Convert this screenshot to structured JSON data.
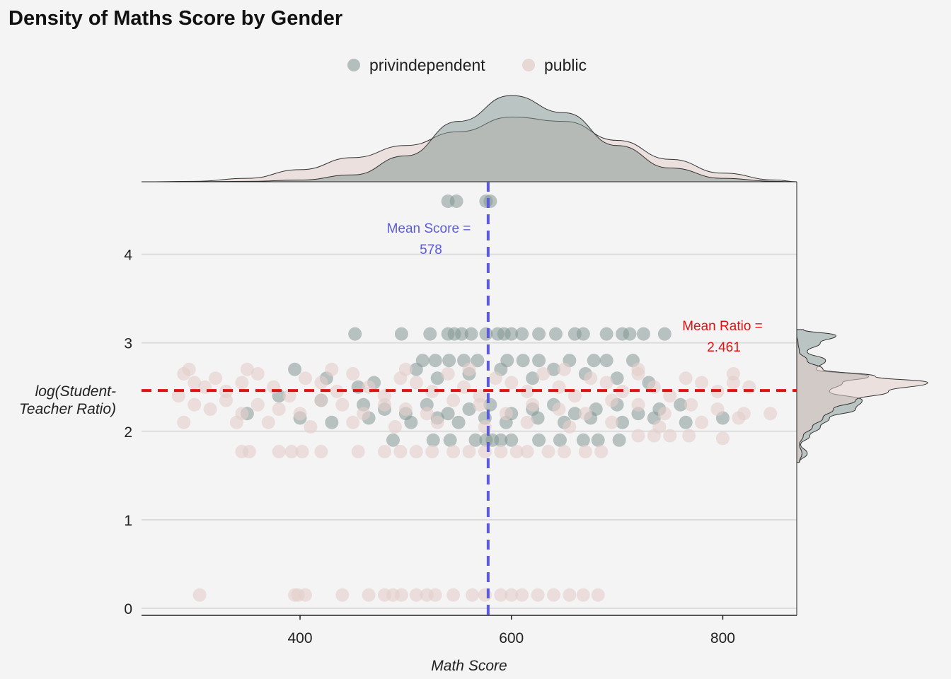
{
  "chart_data": {
    "type": "scatter",
    "title": "Density of Maths Score by Gender",
    "xlabel": "Math Score",
    "ylabel_line1": "log(Student-",
    "ylabel_line2": "Teacher Ratio)",
    "xlim": [
      250,
      870
    ],
    "ylim": [
      -0.08,
      4.82
    ],
    "x_ticks": [
      400,
      600,
      800
    ],
    "y_ticks": [
      0,
      1,
      2,
      3,
      4
    ],
    "grid": "horizontal",
    "legend_position": "top",
    "legend": [
      {
        "name": "privindependent",
        "color": "#7f9490"
      },
      {
        "name": "public",
        "color": "#e3cfcc"
      }
    ],
    "reference_lines": {
      "mean_score": {
        "value": 578,
        "color": "#5b5bdc",
        "label_line1": "Mean Score =",
        "label_line2": "578"
      },
      "mean_ratio": {
        "value": 2.461,
        "color": "#e31010",
        "label_line1": "Mean Ratio =",
        "label_line2": "2.461"
      }
    },
    "series": [
      {
        "name": "privindependent",
        "color": "#7f9490",
        "points": [
          [
            540,
            4.6
          ],
          [
            548,
            4.6
          ],
          [
            576,
            4.6
          ],
          [
            580,
            4.6
          ],
          [
            452,
            3.1
          ],
          [
            496,
            3.1
          ],
          [
            523,
            3.1
          ],
          [
            540,
            3.1
          ],
          [
            546,
            3.1
          ],
          [
            553,
            3.1
          ],
          [
            562,
            3.1
          ],
          [
            576,
            3.1
          ],
          [
            587,
            3.1
          ],
          [
            593,
            3.1
          ],
          [
            600,
            3.1
          ],
          [
            610,
            3.1
          ],
          [
            626,
            3.1
          ],
          [
            642,
            3.1
          ],
          [
            660,
            3.1
          ],
          [
            668,
            3.1
          ],
          [
            690,
            3.1
          ],
          [
            705,
            3.1
          ],
          [
            712,
            3.1
          ],
          [
            725,
            3.1
          ],
          [
            745,
            3.1
          ],
          [
            516,
            2.8
          ],
          [
            528,
            2.8
          ],
          [
            541,
            2.8
          ],
          [
            555,
            2.8
          ],
          [
            568,
            2.8
          ],
          [
            596,
            2.8
          ],
          [
            611,
            2.8
          ],
          [
            626,
            2.8
          ],
          [
            655,
            2.8
          ],
          [
            678,
            2.8
          ],
          [
            690,
            2.8
          ],
          [
            715,
            2.8
          ],
          [
            395,
            2.7
          ],
          [
            425,
            2.6
          ],
          [
            455,
            2.5
          ],
          [
            470,
            2.55
          ],
          [
            510,
            2.7
          ],
          [
            530,
            2.6
          ],
          [
            560,
            2.65
          ],
          [
            590,
            2.7
          ],
          [
            620,
            2.6
          ],
          [
            640,
            2.7
          ],
          [
            670,
            2.65
          ],
          [
            700,
            2.6
          ],
          [
            730,
            2.55
          ],
          [
            380,
            2.4
          ],
          [
            420,
            2.35
          ],
          [
            460,
            2.3
          ],
          [
            480,
            2.25
          ],
          [
            500,
            2.2
          ],
          [
            520,
            2.3
          ],
          [
            540,
            2.2
          ],
          [
            560,
            2.25
          ],
          [
            580,
            2.3
          ],
          [
            600,
            2.2
          ],
          [
            620,
            2.25
          ],
          [
            640,
            2.3
          ],
          [
            660,
            2.2
          ],
          [
            680,
            2.25
          ],
          [
            700,
            2.3
          ],
          [
            720,
            2.2
          ],
          [
            740,
            2.25
          ],
          [
            760,
            2.3
          ],
          [
            350,
            2.2
          ],
          [
            400,
            2.15
          ],
          [
            430,
            2.1
          ],
          [
            465,
            2.15
          ],
          [
            505,
            2.1
          ],
          [
            530,
            2.15
          ],
          [
            550,
            2.1
          ],
          [
            575,
            2.15
          ],
          [
            595,
            2.1
          ],
          [
            625,
            2.15
          ],
          [
            650,
            2.1
          ],
          [
            675,
            2.15
          ],
          [
            705,
            2.1
          ],
          [
            735,
            2.15
          ],
          [
            765,
            2.1
          ],
          [
            800,
            2.15
          ],
          [
            488,
            1.9
          ],
          [
            526,
            1.9
          ],
          [
            542,
            1.9
          ],
          [
            566,
            1.9
          ],
          [
            576,
            1.9
          ],
          [
            582,
            1.9
          ],
          [
            590,
            1.9
          ],
          [
            600,
            1.9
          ],
          [
            626,
            1.9
          ],
          [
            646,
            1.9
          ],
          [
            668,
            1.9
          ],
          [
            682,
            1.9
          ],
          [
            702,
            1.9
          ]
        ]
      },
      {
        "name": "public",
        "color": "#e3cfcc",
        "points": [
          [
            290,
            2.65
          ],
          [
            300,
            2.55
          ],
          [
            310,
            2.5
          ],
          [
            320,
            2.6
          ],
          [
            330,
            2.45
          ],
          [
            345,
            2.55
          ],
          [
            360,
            2.65
          ],
          [
            375,
            2.5
          ],
          [
            390,
            2.4
          ],
          [
            405,
            2.6
          ],
          [
            420,
            2.55
          ],
          [
            435,
            2.45
          ],
          [
            450,
            2.65
          ],
          [
            465,
            2.5
          ],
          [
            480,
            2.4
          ],
          [
            495,
            2.6
          ],
          [
            510,
            2.55
          ],
          [
            525,
            2.45
          ],
          [
            540,
            2.65
          ],
          [
            555,
            2.5
          ],
          [
            570,
            2.4
          ],
          [
            585,
            2.6
          ],
          [
            600,
            2.55
          ],
          [
            615,
            2.45
          ],
          [
            630,
            2.65
          ],
          [
            645,
            2.5
          ],
          [
            660,
            2.4
          ],
          [
            675,
            2.6
          ],
          [
            690,
            2.55
          ],
          [
            705,
            2.45
          ],
          [
            720,
            2.65
          ],
          [
            735,
            2.5
          ],
          [
            750,
            2.4
          ],
          [
            765,
            2.6
          ],
          [
            780,
            2.55
          ],
          [
            795,
            2.45
          ],
          [
            810,
            2.55
          ],
          [
            825,
            2.5
          ],
          [
            285,
            2.4
          ],
          [
            300,
            2.3
          ],
          [
            315,
            2.25
          ],
          [
            330,
            2.35
          ],
          [
            345,
            2.2
          ],
          [
            360,
            2.3
          ],
          [
            380,
            2.25
          ],
          [
            400,
            2.2
          ],
          [
            420,
            2.35
          ],
          [
            440,
            2.3
          ],
          [
            460,
            2.2
          ],
          [
            480,
            2.3
          ],
          [
            500,
            2.25
          ],
          [
            520,
            2.2
          ],
          [
            545,
            2.35
          ],
          [
            570,
            2.3
          ],
          [
            595,
            2.2
          ],
          [
            620,
            2.3
          ],
          [
            645,
            2.25
          ],
          [
            670,
            2.2
          ],
          [
            695,
            2.35
          ],
          [
            720,
            2.3
          ],
          [
            745,
            2.2
          ],
          [
            770,
            2.3
          ],
          [
            795,
            2.25
          ],
          [
            820,
            2.2
          ],
          [
            290,
            2.1
          ],
          [
            340,
            2.1
          ],
          [
            370,
            2.1
          ],
          [
            410,
            2.05
          ],
          [
            450,
            2.1
          ],
          [
            490,
            2.05
          ],
          [
            530,
            2.1
          ],
          [
            575,
            2.05
          ],
          [
            615,
            2.1
          ],
          [
            655,
            2.05
          ],
          [
            695,
            2.1
          ],
          [
            740,
            2.05
          ],
          [
            780,
            2.1
          ],
          [
            815,
            2.15
          ],
          [
            845,
            2.2
          ],
          [
            295,
            2.7
          ],
          [
            350,
            2.7
          ],
          [
            430,
            2.7
          ],
          [
            500,
            2.7
          ],
          [
            560,
            2.7
          ],
          [
            650,
            2.7
          ],
          [
            720,
            2.7
          ],
          [
            810,
            2.65
          ],
          [
            720,
            1.95
          ],
          [
            735,
            1.95
          ],
          [
            750,
            1.95
          ],
          [
            768,
            1.95
          ],
          [
            800,
            1.92
          ],
          [
            345,
            1.77
          ],
          [
            352,
            1.77
          ],
          [
            380,
            1.77
          ],
          [
            392,
            1.77
          ],
          [
            402,
            1.77
          ],
          [
            420,
            1.77
          ],
          [
            455,
            1.77
          ],
          [
            480,
            1.77
          ],
          [
            495,
            1.77
          ],
          [
            510,
            1.77
          ],
          [
            525,
            1.77
          ],
          [
            545,
            1.77
          ],
          [
            560,
            1.77
          ],
          [
            575,
            1.77
          ],
          [
            590,
            1.77
          ],
          [
            605,
            1.77
          ],
          [
            615,
            1.77
          ],
          [
            635,
            1.77
          ],
          [
            650,
            1.77
          ],
          [
            670,
            1.77
          ],
          [
            685,
            1.77
          ],
          [
            305,
            0.15
          ],
          [
            395,
            0.15
          ],
          [
            398,
            0.15
          ],
          [
            405,
            0.15
          ],
          [
            440,
            0.15
          ],
          [
            465,
            0.15
          ],
          [
            480,
            0.15
          ],
          [
            488,
            0.15
          ],
          [
            496,
            0.15
          ],
          [
            510,
            0.15
          ],
          [
            520,
            0.15
          ],
          [
            528,
            0.15
          ],
          [
            545,
            0.15
          ],
          [
            563,
            0.15
          ],
          [
            575,
            0.15
          ],
          [
            590,
            0.15
          ],
          [
            600,
            0.15
          ],
          [
            610,
            0.15
          ],
          [
            625,
            0.15
          ],
          [
            640,
            0.15
          ],
          [
            655,
            0.15
          ],
          [
            668,
            0.15
          ],
          [
            682,
            0.15
          ]
        ]
      }
    ],
    "marginal_x_density": {
      "x": [
        250,
        300,
        350,
        400,
        450,
        500,
        550,
        600,
        650,
        700,
        750,
        800,
        850,
        870
      ],
      "privindependent": [
        0,
        0.001,
        0.005,
        0.02,
        0.08,
        0.3,
        0.7,
        1.0,
        0.8,
        0.42,
        0.16,
        0.04,
        0.005,
        0
      ],
      "public": [
        0,
        0.005,
        0.04,
        0.14,
        0.28,
        0.42,
        0.58,
        0.75,
        0.7,
        0.48,
        0.26,
        0.1,
        0.02,
        0
      ]
    },
    "marginal_y_density": {
      "y": [
        1.65,
        1.75,
        1.85,
        1.95,
        2.05,
        2.15,
        2.25,
        2.35,
        2.45,
        2.55,
        2.62,
        2.7,
        2.8,
        2.9,
        3.0,
        3.08,
        3.15
      ],
      "privindependent": [
        0.02,
        0.08,
        0.03,
        0.1,
        0.18,
        0.25,
        0.45,
        0.5,
        0.25,
        0.35,
        0.55,
        0.15,
        0.22,
        0.08,
        0.18,
        0.3,
        0.05
      ],
      "public": [
        0.02,
        0.04,
        0.02,
        0.05,
        0.12,
        0.2,
        0.28,
        0.45,
        0.7,
        1.0,
        0.6,
        0.2,
        0.08,
        0.02,
        0.01,
        0,
        0
      ]
    }
  }
}
